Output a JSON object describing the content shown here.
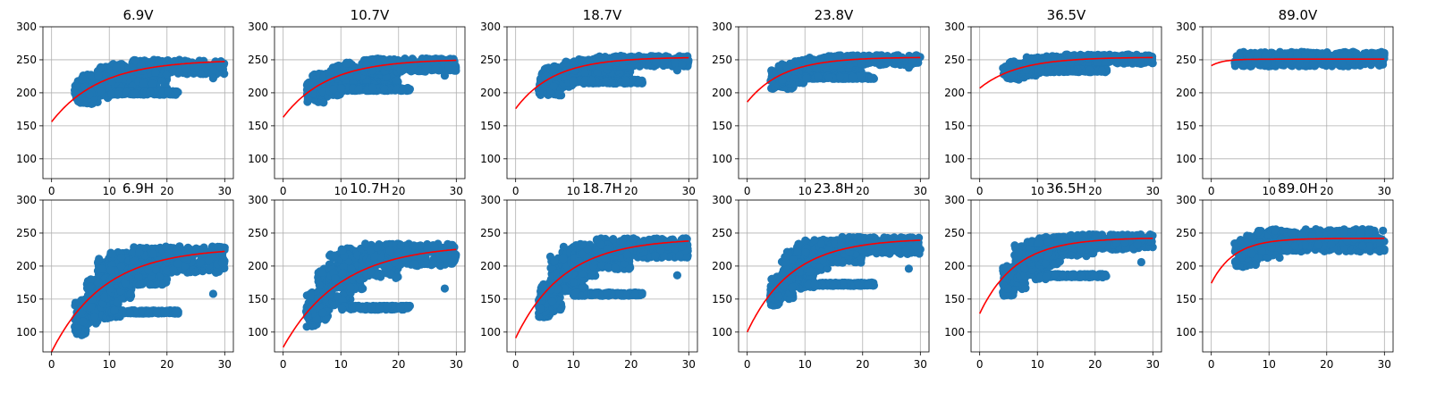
{
  "chart_data": [
    {
      "type": "scatter",
      "title": "6.9V",
      "xlim": [
        -1.5,
        31.5
      ],
      "ylim": [
        70,
        300
      ],
      "xticks": [
        0,
        10,
        20,
        30
      ],
      "yticks": [
        100,
        150,
        200,
        250,
        300
      ],
      "grid": true,
      "scatter_bands": [
        [
          4,
          8,
          183,
          218
        ],
        [
          5,
          10,
          192,
          228
        ],
        [
          8,
          14,
          197,
          240
        ],
        [
          10,
          20,
          206,
          244
        ],
        [
          14,
          30,
          228,
          250
        ],
        [
          10,
          22,
          197,
          203
        ]
      ],
      "outliers": [
        [
          28,
          222
        ]
      ],
      "fit": {
        "a": 250,
        "b": 94,
        "c": 0.12
      }
    },
    {
      "type": "scatter",
      "title": "10.7V",
      "xlim": [
        -1.5,
        31.5
      ],
      "ylim": [
        70,
        300
      ],
      "xticks": [
        0,
        10,
        20,
        30
      ],
      "yticks": [
        100,
        150,
        200,
        250,
        300
      ],
      "grid": true,
      "scatter_bands": [
        [
          4,
          8,
          185,
          218
        ],
        [
          5,
          10,
          196,
          230
        ],
        [
          8,
          14,
          204,
          242
        ],
        [
          10,
          20,
          212,
          246
        ],
        [
          14,
          30,
          232,
          252
        ],
        [
          10,
          22,
          203,
          208
        ]
      ],
      "outliers": [
        [
          28,
          226
        ]
      ],
      "fit": {
        "a": 251,
        "b": 88,
        "c": 0.13
      }
    },
    {
      "type": "scatter",
      "title": "18.7V",
      "xlim": [
        -1.5,
        31.5
      ],
      "ylim": [
        70,
        300
      ],
      "xticks": [
        0,
        10,
        20,
        30
      ],
      "yticks": [
        100,
        150,
        200,
        250,
        300
      ],
      "grid": true,
      "scatter_bands": [
        [
          4,
          8,
          196,
          230
        ],
        [
          5,
          10,
          208,
          240
        ],
        [
          8,
          14,
          215,
          248
        ],
        [
          10,
          20,
          222,
          252
        ],
        [
          14,
          30,
          240,
          256
        ],
        [
          10,
          22,
          214,
          220
        ]
      ],
      "outliers": [
        [
          28,
          234
        ]
      ],
      "fit": {
        "a": 254,
        "b": 78,
        "c": 0.15
      }
    },
    {
      "type": "scatter",
      "title": "23.8V",
      "xlim": [
        -1.5,
        31.5
      ],
      "ylim": [
        70,
        300
      ],
      "xticks": [
        0,
        10,
        20,
        30
      ],
      "yticks": [
        100,
        150,
        200,
        250,
        300
      ],
      "grid": true,
      "scatter_bands": [
        [
          4,
          8,
          206,
          235
        ],
        [
          5,
          10,
          214,
          244
        ],
        [
          8,
          14,
          222,
          250
        ],
        [
          10,
          20,
          228,
          254
        ],
        [
          14,
          30,
          242,
          257
        ],
        [
          10,
          22,
          221,
          226
        ]
      ],
      "outliers": [
        [
          28,
          238
        ]
      ],
      "fit": {
        "a": 254,
        "b": 68,
        "c": 0.16
      }
    },
    {
      "type": "scatter",
      "title": "36.5V",
      "xlim": [
        -1.5,
        31.5
      ],
      "ylim": [
        70,
        300
      ],
      "xticks": [
        0,
        10,
        20,
        30
      ],
      "yticks": [
        100,
        150,
        200,
        250,
        300
      ],
      "grid": true,
      "scatter_bands": [
        [
          4,
          8,
          220,
          240
        ],
        [
          5,
          10,
          226,
          248
        ],
        [
          8,
          14,
          230,
          254
        ],
        [
          10,
          20,
          234,
          256
        ],
        [
          14,
          30,
          244,
          258
        ],
        [
          10,
          22,
          231,
          236
        ]
      ],
      "outliers": [
        [
          28,
          244
        ]
      ],
      "fit": {
        "a": 254,
        "b": 47,
        "c": 0.15
      }
    },
    {
      "type": "scatter",
      "title": "89.0V",
      "xlim": [
        -1.5,
        31.5
      ],
      "ylim": [
        70,
        300
      ],
      "xticks": [
        0,
        10,
        20,
        30
      ],
      "yticks": [
        100,
        150,
        200,
        250,
        300
      ],
      "grid": true,
      "scatter_bands": [
        [
          4,
          30,
          240,
          262
        ],
        [
          6,
          24,
          244,
          260
        ]
      ],
      "outliers": [],
      "fit": {
        "a": 251,
        "b": 10,
        "c": 0.5
      }
    },
    {
      "type": "scatter",
      "title": "6.9H",
      "xlim": [
        -1.5,
        31.5
      ],
      "ylim": [
        70,
        300
      ],
      "xticks": [
        0,
        10,
        20,
        30
      ],
      "yticks": [
        100,
        150,
        200,
        250,
        300
      ],
      "grid": true,
      "scatter_bands": [
        [
          4,
          6,
          95,
          125
        ],
        [
          4,
          8,
          110,
          150
        ],
        [
          6,
          12,
          120,
          180
        ],
        [
          8,
          14,
          150,
          212
        ],
        [
          10,
          20,
          170,
          222
        ],
        [
          14,
          30,
          190,
          230
        ],
        [
          10,
          22,
          128,
          133
        ]
      ],
      "outliers": [
        [
          28,
          158
        ]
      ],
      "fit": {
        "a": 228,
        "b": 158,
        "c": 0.11
      }
    },
    {
      "type": "scatter",
      "title": "10.7H",
      "xlim": [
        -1.5,
        31.5
      ],
      "ylim": [
        70,
        300
      ],
      "xticks": [
        0,
        10,
        20,
        30
      ],
      "yticks": [
        100,
        150,
        200,
        250,
        300
      ],
      "grid": true,
      "scatter_bands": [
        [
          4,
          6,
          108,
          140
        ],
        [
          4,
          8,
          118,
          160
        ],
        [
          6,
          12,
          140,
          200
        ],
        [
          8,
          14,
          165,
          218
        ],
        [
          10,
          20,
          180,
          228
        ],
        [
          14,
          30,
          200,
          234
        ],
        [
          10,
          22,
          134,
          140
        ]
      ],
      "outliers": [
        [
          28,
          166
        ]
      ],
      "fit": {
        "a": 233,
        "b": 156,
        "c": 0.1
      }
    },
    {
      "type": "scatter",
      "title": "18.7H",
      "xlim": [
        -1.5,
        31.5
      ],
      "ylim": [
        70,
        300
      ],
      "xticks": [
        0,
        10,
        20,
        30
      ],
      "yticks": [
        100,
        150,
        200,
        250,
        300
      ],
      "grid": true,
      "scatter_bands": [
        [
          4,
          6,
          122,
          150
        ],
        [
          4,
          8,
          130,
          175
        ],
        [
          6,
          12,
          160,
          215
        ],
        [
          8,
          14,
          185,
          230
        ],
        [
          10,
          20,
          195,
          236
        ],
        [
          14,
          30,
          212,
          242
        ],
        [
          10,
          22,
          155,
          160
        ]
      ],
      "outliers": [
        [
          28,
          186
        ]
      ],
      "fit": {
        "a": 242,
        "b": 151,
        "c": 0.12
      }
    },
    {
      "type": "scatter",
      "title": "23.8H",
      "xlim": [
        -1.5,
        31.5
      ],
      "ylim": [
        70,
        300
      ],
      "xticks": [
        0,
        10,
        20,
        30
      ],
      "yticks": [
        100,
        150,
        200,
        250,
        300
      ],
      "grid": true,
      "scatter_bands": [
        [
          4,
          6,
          140,
          165
        ],
        [
          4,
          8,
          150,
          185
        ],
        [
          6,
          12,
          165,
          222
        ],
        [
          8,
          14,
          190,
          234
        ],
        [
          10,
          20,
          205,
          240
        ],
        [
          14,
          30,
          218,
          244
        ],
        [
          10,
          22,
          170,
          175
        ]
      ],
      "outliers": [
        [
          28,
          196
        ]
      ],
      "fit": {
        "a": 242,
        "b": 142,
        "c": 0.13
      }
    },
    {
      "type": "scatter",
      "title": "36.5H",
      "xlim": [
        -1.5,
        31.5
      ],
      "ylim": [
        70,
        300
      ],
      "xticks": [
        0,
        10,
        20,
        30
      ],
      "yticks": [
        100,
        150,
        200,
        250,
        300
      ],
      "grid": true,
      "scatter_bands": [
        [
          4,
          6,
          155,
          180
        ],
        [
          4,
          8,
          165,
          200
        ],
        [
          6,
          12,
          180,
          232
        ],
        [
          8,
          14,
          200,
          240
        ],
        [
          10,
          20,
          215,
          245
        ],
        [
          14,
          30,
          225,
          248
        ],
        [
          10,
          22,
          183,
          188
        ]
      ],
      "outliers": [
        [
          28,
          206
        ]
      ],
      "fit": {
        "a": 243,
        "b": 115,
        "c": 0.16
      }
    },
    {
      "type": "scatter",
      "title": "89.0H",
      "xlim": [
        -1.5,
        31.5
      ],
      "ylim": [
        70,
        300
      ],
      "xticks": [
        0,
        10,
        20,
        30
      ],
      "yticks": [
        100,
        150,
        200,
        250,
        300
      ],
      "grid": true,
      "scatter_bands": [
        [
          4,
          8,
          198,
          235
        ],
        [
          5,
          12,
          212,
          248
        ],
        [
          8,
          30,
          222,
          256
        ],
        [
          12,
          28,
          228,
          252
        ]
      ],
      "outliers": [],
      "fit": {
        "a": 242,
        "b": 68,
        "c": 0.25
      }
    }
  ],
  "colors": {
    "scatter": "#1f77b4",
    "fit": "#ff0000",
    "grid": "#b0b0b0",
    "axis": "#000000"
  }
}
